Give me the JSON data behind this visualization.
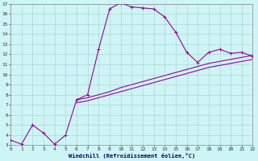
{
  "xlabel": "Windchill (Refroidissement éolien,°C)",
  "bg_color": "#cef5f5",
  "grid_color": "#aacccc",
  "line_color": "#990099",
  "xlim": [
    0,
    22
  ],
  "ylim": [
    3,
    17
  ],
  "xticks": [
    0,
    1,
    2,
    3,
    4,
    5,
    6,
    7,
    8,
    9,
    10,
    11,
    12,
    13,
    14,
    15,
    16,
    17,
    18,
    19,
    20,
    21,
    22
  ],
  "yticks": [
    3,
    4,
    5,
    6,
    7,
    8,
    9,
    10,
    11,
    12,
    13,
    14,
    15,
    16,
    17
  ],
  "curve1_x": [
    0,
    1,
    2,
    3,
    4,
    5,
    6,
    7,
    8,
    9,
    10,
    11,
    12,
    13,
    14,
    15,
    16,
    17,
    18,
    19,
    20,
    21,
    22
  ],
  "curve1_y": [
    3.5,
    3.1,
    5.0,
    4.2,
    3.1,
    4.0,
    7.5,
    8.0,
    12.5,
    16.5,
    17.1,
    16.7,
    16.6,
    16.5,
    15.7,
    14.2,
    12.2,
    11.2,
    12.2,
    12.5,
    12.1,
    12.2,
    11.8
  ],
  "curve2_x": [
    6,
    7,
    8,
    9,
    10,
    11,
    12,
    13,
    14,
    15,
    16,
    17,
    18,
    19,
    20,
    21,
    22
  ],
  "curve2_y": [
    7.5,
    7.7,
    8.0,
    8.3,
    8.7,
    9.0,
    9.3,
    9.6,
    9.9,
    10.2,
    10.5,
    10.8,
    11.1,
    11.3,
    11.5,
    11.7,
    11.9
  ],
  "curve3_x": [
    6,
    7,
    8,
    9,
    10,
    11,
    12,
    13,
    14,
    15,
    16,
    17,
    18,
    19,
    20,
    21,
    22
  ],
  "curve3_y": [
    7.2,
    7.4,
    7.7,
    8.0,
    8.3,
    8.6,
    8.9,
    9.2,
    9.5,
    9.8,
    10.1,
    10.4,
    10.7,
    10.9,
    11.1,
    11.3,
    11.5
  ]
}
